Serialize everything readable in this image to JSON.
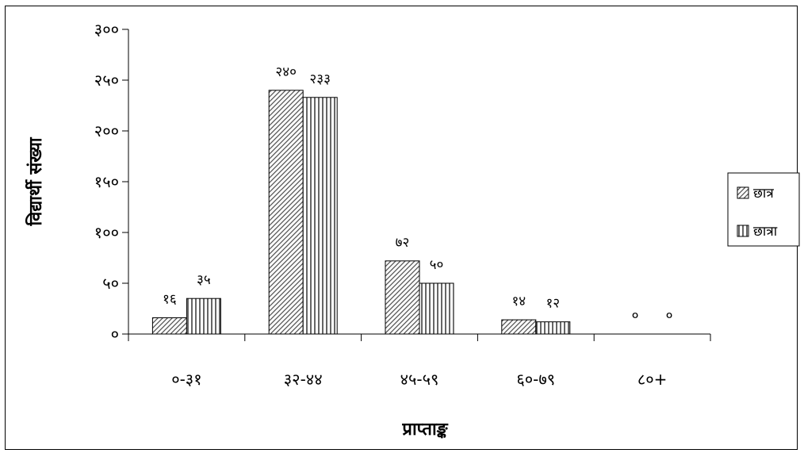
{
  "chart_data": {
    "type": "bar",
    "title": "",
    "xlabel": "प्राप्ताङ्क",
    "ylabel": "विद्यार्थी संख्या",
    "categories": [
      "०-३१",
      "३२-४४",
      "४५-५९",
      "६०-७९",
      "८०+"
    ],
    "ylim": [
      0,
      300
    ],
    "yticks": [
      0,
      50,
      100,
      150,
      200,
      250,
      300
    ],
    "ytick_labels": [
      "०",
      "५०",
      "१००",
      "१५०",
      "२००",
      "२५०",
      "३००"
    ],
    "grid": false,
    "legend_position": "right",
    "series": [
      {
        "name": "छात्र",
        "values": [
          16,
          240,
          72,
          14,
          0
        ],
        "labels": [
          "१६",
          "२४०",
          "७२",
          "१४",
          "०"
        ],
        "pattern": "diagonal"
      },
      {
        "name": "छात्रा",
        "values": [
          35,
          233,
          50,
          12,
          0
        ],
        "labels": [
          "३५",
          "२३३",
          "५०",
          "१२",
          "०"
        ],
        "pattern": "vertical"
      }
    ]
  }
}
